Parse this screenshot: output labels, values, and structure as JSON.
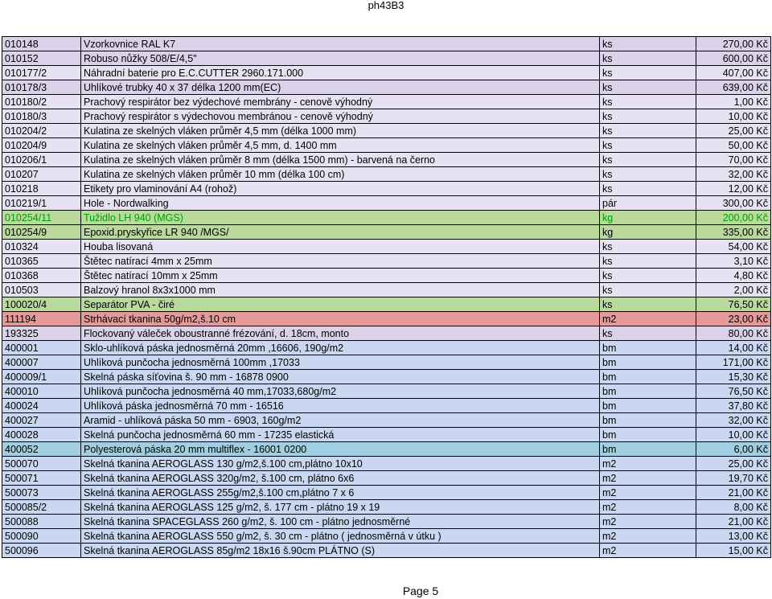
{
  "header": {
    "title": "ph43B3"
  },
  "colors": {
    "lavender": "#d9d2e9",
    "lavender_light": "#e7e2f1",
    "green": "#b9d99d",
    "salmon": "#e59a9a",
    "blue_light": "#c9d7f0",
    "cyan": "#9fcfe0",
    "green_text": "#00a000"
  },
  "rows": [
    {
      "code": "010148",
      "name": "Vzorkovnice RAL K7",
      "unit": "ks",
      "price": "270,00 Kč"
    },
    {
      "code": "010152",
      "name": "Robuso nůžky 508/E/4,5\"",
      "unit": "ks",
      "price": "600,00 Kč"
    },
    {
      "code": "010177/2",
      "name": "Náhradní  baterie pro E.C.CUTTER  2960.171.000",
      "unit": "ks",
      "price": "407,00 Kč"
    },
    {
      "code": "010178/3",
      "name": "Uhlíkové trubky 40 x 37 délka 1200 mm(EC)",
      "unit": "ks",
      "price": "639,00 Kč"
    },
    {
      "code": "010180/2",
      "name": "Prachový respirátor bez výdechové membrány - cenově výhodný",
      "unit": "ks",
      "price": "1,00 Kč"
    },
    {
      "code": "010180/3",
      "name": "Prachový respirátor s  výdechovou membránou - cenově výhodný",
      "unit": "ks",
      "price": "10,00 Kč"
    },
    {
      "code": "010204/2",
      "name": "Kulatina ze skelných vláken průměr 4,5 mm (délka 1000 mm)",
      "unit": "ks",
      "price": "25,00 Kč"
    },
    {
      "code": "010204/9",
      "name": "Kulatina ze skelných vláken průměr 4,5 mm, d. 1400 mm",
      "unit": "ks",
      "price": "50,00 Kč"
    },
    {
      "code": "010206/1",
      "name": "Kulatina ze skelných vláken průměr 8 mm (délka 1500 mm) - barvená na černo",
      "unit": "ks",
      "price": "70,00 Kč"
    },
    {
      "code": "010207",
      "name": "Kulatina ze skelných vláken průměr 10 mm (délka 100 cm)",
      "unit": "ks",
      "price": "32,00 Kč"
    },
    {
      "code": "010218",
      "name": "Etikety pro vlaminování A4 (rohož)",
      "unit": "ks",
      "price": "12,00 Kč"
    },
    {
      "code": "010219/1",
      "name": "Hole - Nordwalking",
      "unit": "pár",
      "price": "300,00 Kč"
    },
    {
      "code": "010254/11",
      "name": "Tužidlo LH 940 (MGS)",
      "unit": "kg",
      "price": "200,00 Kč"
    },
    {
      "code": "010254/9",
      "name": "Epoxid.pryskyřice LR 940 /MGS/",
      "unit": "kg",
      "price": "335,00 Kč"
    },
    {
      "code": "010324",
      "name": "Houba lisovaná",
      "unit": "ks",
      "price": "54,00 Kč"
    },
    {
      "code": "010365",
      "name": "Štětec natírací 4mm x 25mm",
      "unit": "ks",
      "price": "3,10 Kč"
    },
    {
      "code": "010368",
      "name": "Štětec natírací 10mm x 25mm",
      "unit": "ks",
      "price": "4,80 Kč"
    },
    {
      "code": "010503",
      "name": "Balzový hranol 8x3x1000 mm",
      "unit": "ks",
      "price": "2,00 Kč"
    },
    {
      "code": "100020/4",
      "name": "Separátor PVA  - čiré",
      "unit": "ks",
      "price": "76,50 Kč"
    },
    {
      "code": "111194",
      "name": "Strhávací tkanina 50g/m2,š.10 cm",
      "unit": "m2",
      "price": "23,00 Kč"
    },
    {
      "code": "193325",
      "name": "Flockovaný váleček oboustranné frézování, d. 18cm, monto",
      "unit": "ks",
      "price": "80,00 Kč"
    },
    {
      "code": "400001",
      "name": "Sklo-uhlíková páska jednosměrná 20mm ,16606, 190g/m2",
      "unit": "bm",
      "price": "14,00 Kč"
    },
    {
      "code": "400007",
      "name": "Uhlíková punčocha jednosměrná 100mm ,17033",
      "unit": "bm",
      "price": "171,00 Kč"
    },
    {
      "code": "400009/1",
      "name": "Skelná páska síťovina š. 90 mm - 16878 0900",
      "unit": "bm",
      "price": "15,30 Kč"
    },
    {
      "code": "400010",
      "name": "Uhlíková  punčocha  jednosměrná 40 mm,17033,680g/m2",
      "unit": "bm",
      "price": "76,50 Kč"
    },
    {
      "code": "400024",
      "name": "Uhlíková páska jednosměrná 70 mm - 16516",
      "unit": "bm",
      "price": "37,80 Kč"
    },
    {
      "code": "400027",
      "name": "Aramid - uhlíková páska 50 mm - 6903, 160g/m2",
      "unit": "bm",
      "price": "32,00 Kč"
    },
    {
      "code": "400028",
      "name": "Skelná punčocha jednosměrná 60 mm - 17235 elastická",
      "unit": "bm",
      "price": "10,00 Kč"
    },
    {
      "code": "400052",
      "name": "Polyesterová páska 20 mm  multiflex - 16001 0200",
      "unit": "bm",
      "price": "6,00 Kč"
    },
    {
      "code": "500070",
      "name": "Skelná tkanina AEROGLASS 130 g/m2,š.100 cm,plátno  10x10",
      "unit": "m2",
      "price": "25,00 Kč"
    },
    {
      "code": "500071",
      "name": "Skelná tkanina AEROGLASS 320g/m2, š.100 cm, plátno 6x6",
      "unit": "m2",
      "price": "19,70 Kč"
    },
    {
      "code": "500073",
      "name": "Skelná tkanina AEROGLASS 255g/m2,š.100 cm,plátno  7 x 6",
      "unit": "m2",
      "price": "21,00 Kč"
    },
    {
      "code": "500085/2",
      "name": "Skelná tkanina AEROGLASS 125 g/m2, š. 177 cm - plátno 19 x 19",
      "unit": "m2",
      "price": "8,00 Kč"
    },
    {
      "code": "500088",
      "name": "Skelná tkanina SPACEGLASS 260 g/m2, š. 100 cm - plátno jednosměrné",
      "unit": "m2",
      "price": "21,00 Kč"
    },
    {
      "code": "500090",
      "name": "Skelná tkanina AEROGLASS  550 g/m2, š. 30 cm - plátno ( jednosměrná v útku )",
      "unit": "m2",
      "price": "13,00 Kč"
    },
    {
      "code": "500096",
      "name": "Skelná tkanina AEROGLASS 85g/m2 18x16 š.90cm PLÁTNO (S)",
      "unit": "m2",
      "price": "15,00 Kč"
    }
  ],
  "footer": {
    "page": "Page 5"
  }
}
